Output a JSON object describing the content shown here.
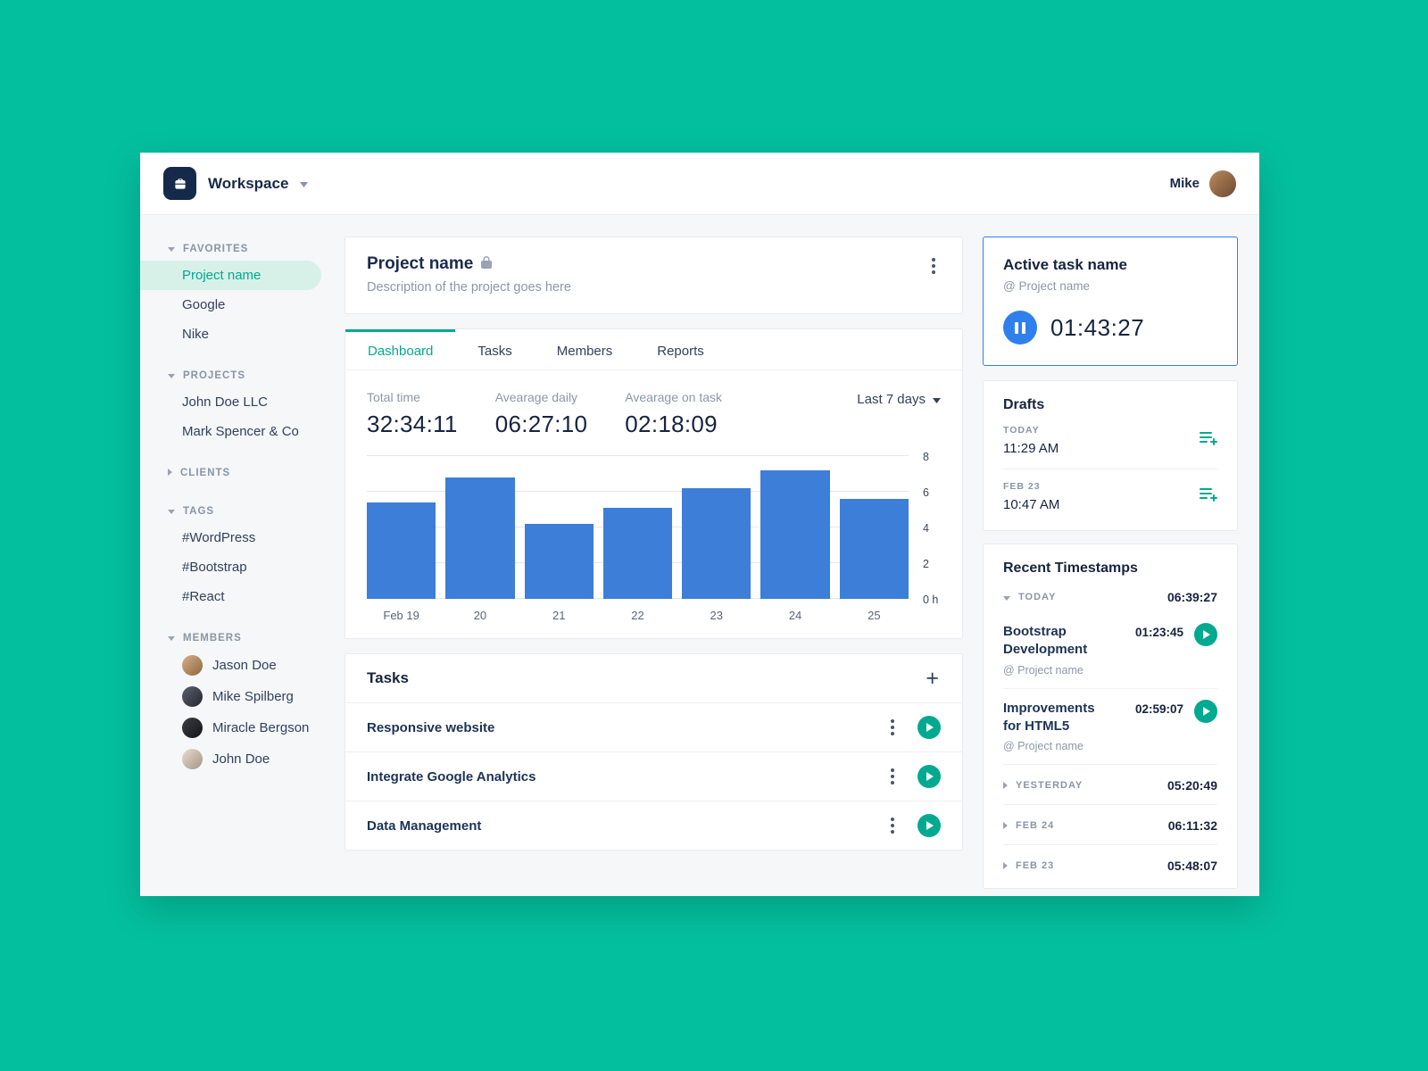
{
  "topbar": {
    "workspace_label": "Workspace",
    "user_name": "Mike"
  },
  "sidebar": {
    "favorites": {
      "label": "FAVORITES",
      "items": [
        "Project name",
        "Google",
        "Nike"
      ],
      "active_index": 0
    },
    "projects": {
      "label": "PROJECTS",
      "items": [
        "John Doe LLC",
        "Mark Spencer & Co"
      ]
    },
    "clients": {
      "label": "CLIENTS"
    },
    "tags": {
      "label": "TAGS",
      "items": [
        "#WordPress",
        "#Bootstrap",
        "#React"
      ]
    },
    "members": {
      "label": "MEMBERS",
      "items": [
        "Jason Doe",
        "Mike Spilberg",
        "Miracle Bergson",
        "John Doe"
      ]
    }
  },
  "project_header": {
    "title": "Project name",
    "description": "Description of the project goes here"
  },
  "tabs": {
    "items": [
      "Dashboard",
      "Tasks",
      "Members",
      "Reports"
    ],
    "active": "Dashboard"
  },
  "stats": {
    "total_time": {
      "label": "Total time",
      "value": "32:34:11"
    },
    "avg_daily": {
      "label": "Avearage daily",
      "value": "06:27:10"
    },
    "avg_task": {
      "label": "Avearage on task",
      "value": "02:18:09"
    },
    "range": "Last 7 days"
  },
  "chart_data": {
    "type": "bar",
    "categories": [
      "Feb 19",
      "20",
      "21",
      "22",
      "23",
      "24",
      "25"
    ],
    "values": [
      5.4,
      6.8,
      4.2,
      5.1,
      6.2,
      7.2,
      5.6
    ],
    "title": "",
    "xlabel": "",
    "ylabel": "hours",
    "ylim": [
      0,
      8
    ],
    "yticks": [
      0,
      2,
      4,
      6,
      8
    ],
    "ytick_labels": [
      "0 h",
      "2",
      "4",
      "6",
      "8"
    ],
    "bar_color": "#3d7ed8",
    "grid": true,
    "legend": "none"
  },
  "tasks": {
    "title": "Tasks",
    "items": [
      "Responsive website",
      "Integrate Google Analytics",
      "Data Management"
    ]
  },
  "active_task": {
    "title": "Active task name",
    "project": "@ Project name",
    "time": "01:43:27"
  },
  "drafts": {
    "title": "Drafts",
    "items": [
      {
        "day": "TODAY",
        "time": "11:29 AM"
      },
      {
        "day": "FEB 23",
        "time": "10:47 AM"
      }
    ]
  },
  "timestamps": {
    "title": "Recent Timestamps",
    "today": {
      "label": "TODAY",
      "total": "06:39:27"
    },
    "entries": [
      {
        "name": "Bootstrap Development",
        "project": "@ Project name",
        "time": "01:23:45"
      },
      {
        "name": "Improvements for HTML5",
        "project": "@ Project name",
        "time": "02:59:07"
      }
    ],
    "groups": [
      {
        "label": "YESTERDAY",
        "total": "05:20:49"
      },
      {
        "label": "FEB 24",
        "total": "06:11:32"
      },
      {
        "label": "FEB 23",
        "total": "05:48:07"
      }
    ]
  },
  "icons": {
    "brand": "briefcase-icon",
    "workspace_dropdown": "chevron-down-icon",
    "project_lock": "lock-icon",
    "card_menu": "kebab-menu-icon",
    "range_dropdown": "chevron-down-icon",
    "add_task": "plus-icon",
    "task_start": "play-icon",
    "active_pause": "pause-icon",
    "draft_resume": "add-to-list-icon",
    "section_open": "chevron-down-icon",
    "section_closed": "chevron-right-icon"
  },
  "colors": {
    "background_teal": "#04bf9e",
    "accent_green": "#00a98f",
    "bar_blue": "#3d7ed8",
    "active_border_blue": "#2f80ed",
    "dark_navy": "#17233f"
  }
}
